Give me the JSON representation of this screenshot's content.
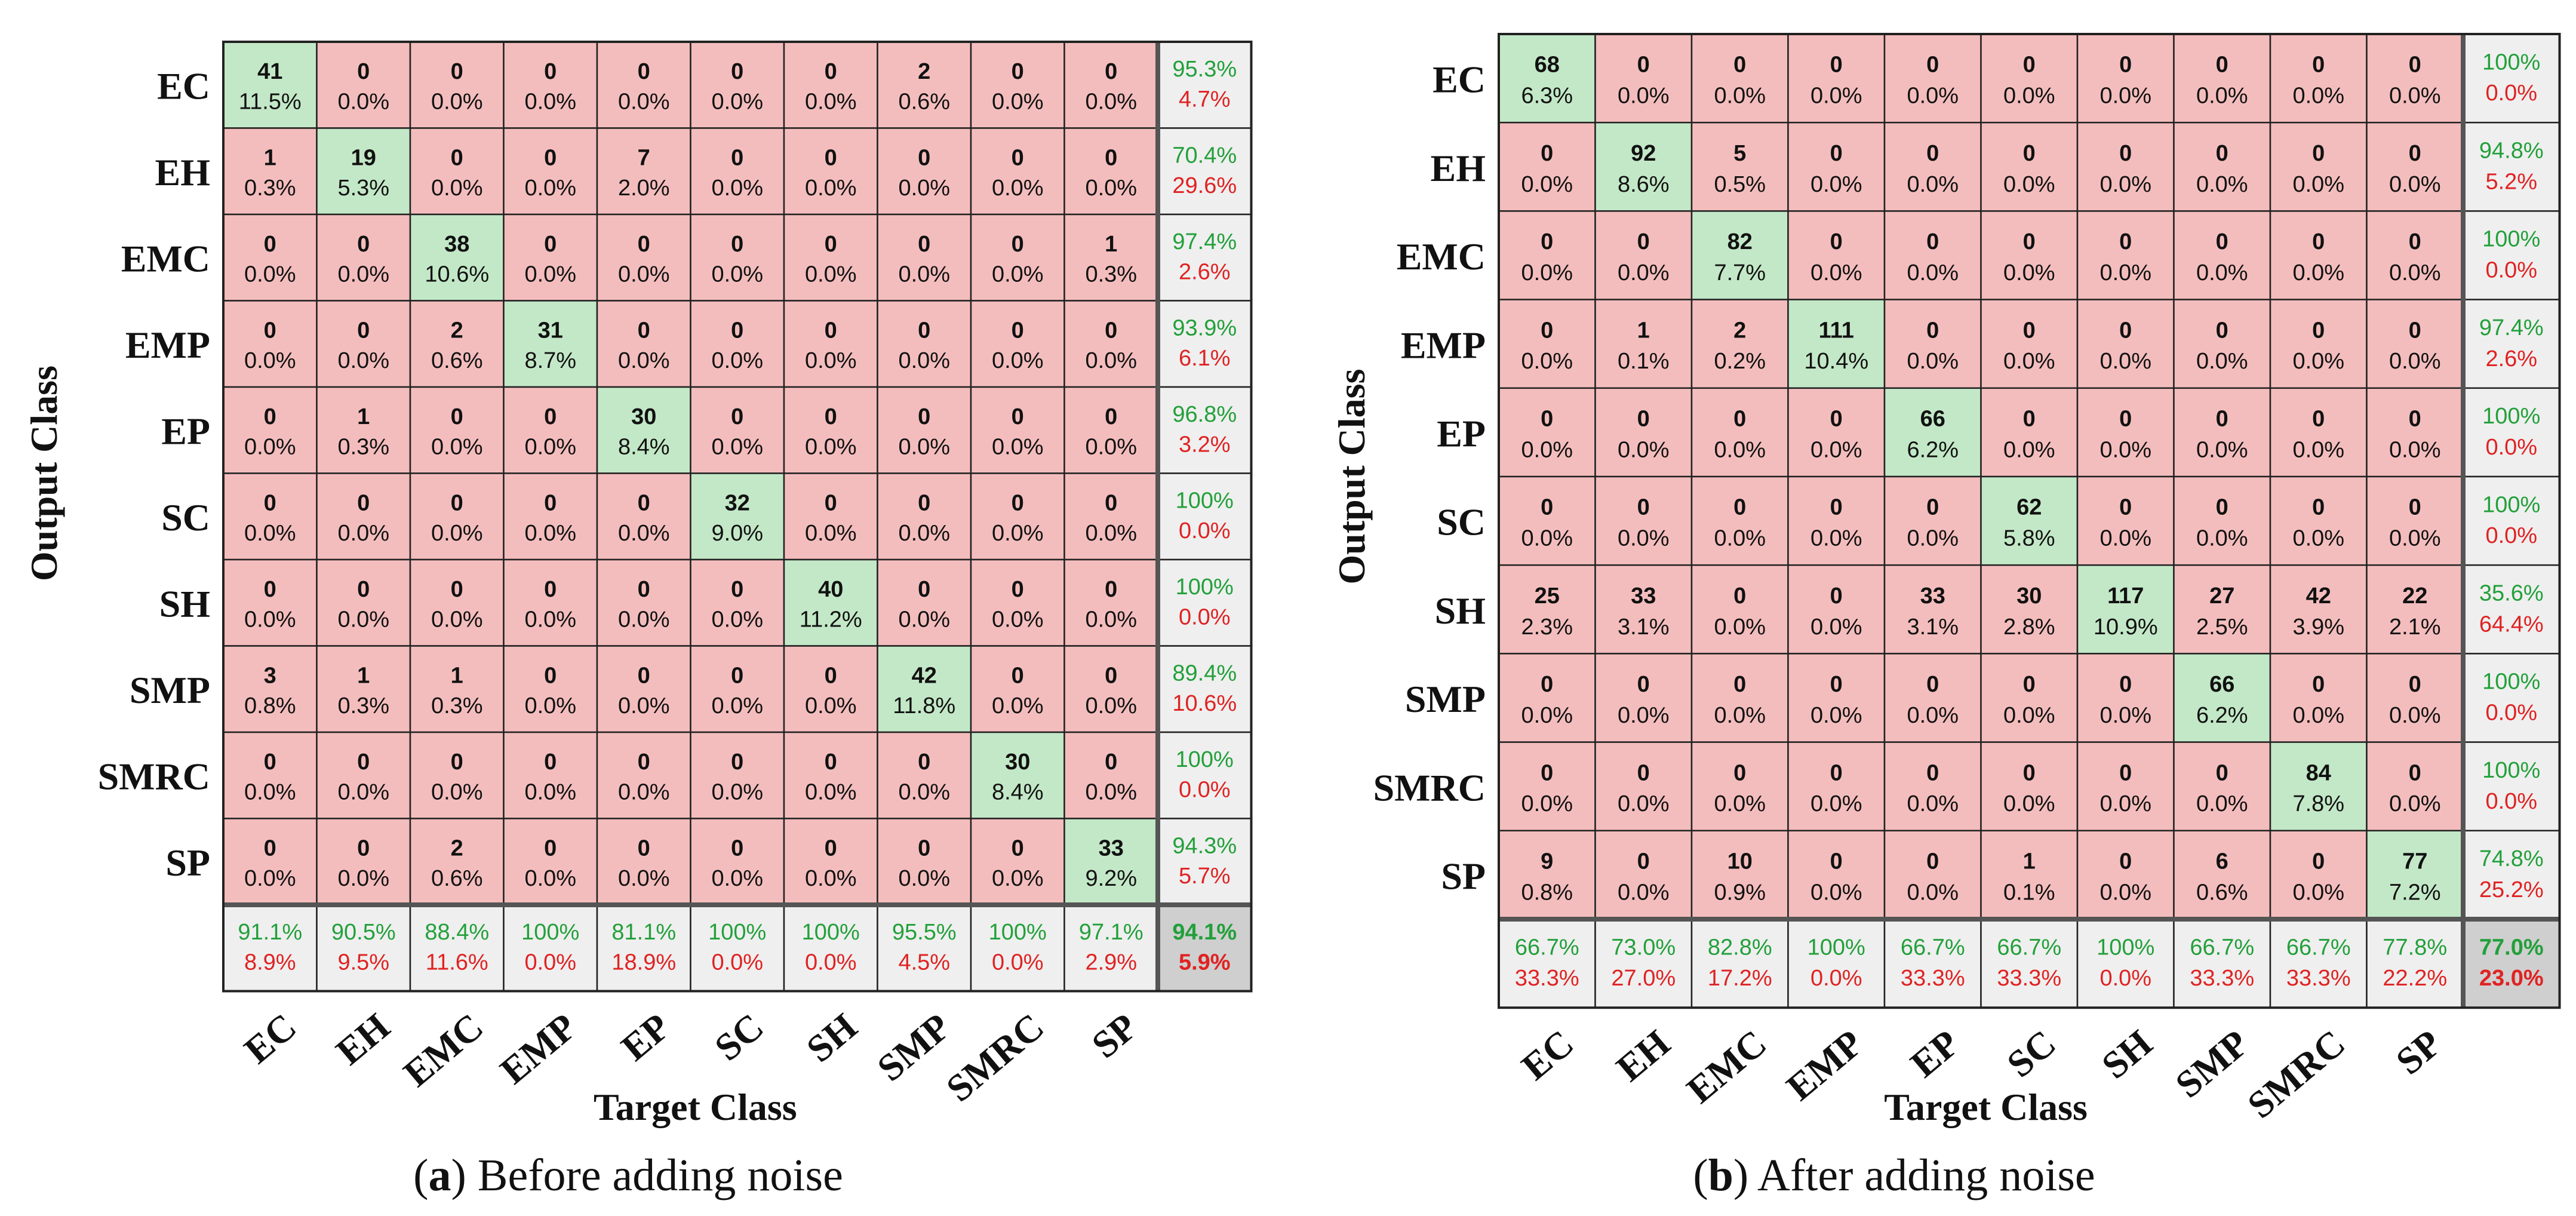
{
  "chart_data": [
    {
      "type": "heatmap",
      "subtype": "confusion-matrix",
      "caption_letter": "a",
      "caption_text": "Before adding noise",
      "xlabel": "Target Class",
      "ylabel": "Output Class",
      "classes": [
        "EC",
        "EH",
        "EMC",
        "EMP",
        "EP",
        "SC",
        "SH",
        "SMP",
        "SMRC",
        "SP"
      ],
      "rows": [
        {
          "counts": [
            41,
            0,
            0,
            0,
            0,
            0,
            0,
            2,
            0,
            0
          ],
          "percents": [
            "11.5%",
            "0.0%",
            "0.0%",
            "0.0%",
            "0.0%",
            "0.0%",
            "0.0%",
            "0.6%",
            "0.0%",
            "0.0%"
          ],
          "precision": "95.3%",
          "error": "4.7%"
        },
        {
          "counts": [
            1,
            19,
            0,
            0,
            7,
            0,
            0,
            0,
            0,
            0
          ],
          "percents": [
            "0.3%",
            "5.3%",
            "0.0%",
            "0.0%",
            "2.0%",
            "0.0%",
            "0.0%",
            "0.0%",
            "0.0%",
            "0.0%"
          ],
          "precision": "70.4%",
          "error": "29.6%"
        },
        {
          "counts": [
            0,
            0,
            38,
            0,
            0,
            0,
            0,
            0,
            0,
            1
          ],
          "percents": [
            "0.0%",
            "0.0%",
            "10.6%",
            "0.0%",
            "0.0%",
            "0.0%",
            "0.0%",
            "0.0%",
            "0.0%",
            "0.3%"
          ],
          "precision": "97.4%",
          "error": "2.6%"
        },
        {
          "counts": [
            0,
            0,
            2,
            31,
            0,
            0,
            0,
            0,
            0,
            0
          ],
          "percents": [
            "0.0%",
            "0.0%",
            "0.6%",
            "8.7%",
            "0.0%",
            "0.0%",
            "0.0%",
            "0.0%",
            "0.0%",
            "0.0%"
          ],
          "precision": "93.9%",
          "error": "6.1%"
        },
        {
          "counts": [
            0,
            1,
            0,
            0,
            30,
            0,
            0,
            0,
            0,
            0
          ],
          "percents": [
            "0.0%",
            "0.3%",
            "0.0%",
            "0.0%",
            "8.4%",
            "0.0%",
            "0.0%",
            "0.0%",
            "0.0%",
            "0.0%"
          ],
          "precision": "96.8%",
          "error": "3.2%"
        },
        {
          "counts": [
            0,
            0,
            0,
            0,
            0,
            32,
            0,
            0,
            0,
            0
          ],
          "percents": [
            "0.0%",
            "0.0%",
            "0.0%",
            "0.0%",
            "0.0%",
            "9.0%",
            "0.0%",
            "0.0%",
            "0.0%",
            "0.0%"
          ],
          "precision": "100%",
          "error": "0.0%"
        },
        {
          "counts": [
            0,
            0,
            0,
            0,
            0,
            0,
            40,
            0,
            0,
            0
          ],
          "percents": [
            "0.0%",
            "0.0%",
            "0.0%",
            "0.0%",
            "0.0%",
            "0.0%",
            "11.2%",
            "0.0%",
            "0.0%",
            "0.0%"
          ],
          "precision": "100%",
          "error": "0.0%"
        },
        {
          "counts": [
            3,
            1,
            1,
            0,
            0,
            0,
            0,
            42,
            0,
            0
          ],
          "percents": [
            "0.8%",
            "0.3%",
            "0.3%",
            "0.0%",
            "0.0%",
            "0.0%",
            "0.0%",
            "11.8%",
            "0.0%",
            "0.0%"
          ],
          "precision": "89.4%",
          "error": "10.6%"
        },
        {
          "counts": [
            0,
            0,
            0,
            0,
            0,
            0,
            0,
            0,
            30,
            0
          ],
          "percents": [
            "0.0%",
            "0.0%",
            "0.0%",
            "0.0%",
            "0.0%",
            "0.0%",
            "0.0%",
            "0.0%",
            "8.4%",
            "0.0%"
          ],
          "precision": "100%",
          "error": "0.0%"
        },
        {
          "counts": [
            0,
            0,
            2,
            0,
            0,
            0,
            0,
            0,
            0,
            33
          ],
          "percents": [
            "0.0%",
            "0.0%",
            "0.6%",
            "0.0%",
            "0.0%",
            "0.0%",
            "0.0%",
            "0.0%",
            "0.0%",
            "9.2%"
          ],
          "precision": "94.3%",
          "error": "5.7%"
        }
      ],
      "column_recall": [
        "91.1%",
        "90.5%",
        "88.4%",
        "100%",
        "81.1%",
        "100%",
        "100%",
        "95.5%",
        "100%",
        "97.1%"
      ],
      "column_error": [
        "8.9%",
        "9.5%",
        "11.6%",
        "0.0%",
        "18.9%",
        "0.0%",
        "0.0%",
        "4.5%",
        "0.0%",
        "2.9%"
      ],
      "overall_accuracy": "94.1%",
      "overall_error": "5.9%"
    },
    {
      "type": "heatmap",
      "subtype": "confusion-matrix",
      "caption_letter": "b",
      "caption_text": "After adding noise",
      "xlabel": "Target Class",
      "ylabel": "Output Class",
      "classes": [
        "EC",
        "EH",
        "EMC",
        "EMP",
        "EP",
        "SC",
        "SH",
        "SMP",
        "SMRC",
        "SP"
      ],
      "rows": [
        {
          "counts": [
            68,
            0,
            0,
            0,
            0,
            0,
            0,
            0,
            0,
            0
          ],
          "percents": [
            "6.3%",
            "0.0%",
            "0.0%",
            "0.0%",
            "0.0%",
            "0.0%",
            "0.0%",
            "0.0%",
            "0.0%",
            "0.0%"
          ],
          "precision": "100%",
          "error": "0.0%"
        },
        {
          "counts": [
            0,
            92,
            5,
            0,
            0,
            0,
            0,
            0,
            0,
            0
          ],
          "percents": [
            "0.0%",
            "8.6%",
            "0.5%",
            "0.0%",
            "0.0%",
            "0.0%",
            "0.0%",
            "0.0%",
            "0.0%",
            "0.0%"
          ],
          "precision": "94.8%",
          "error": "5.2%"
        },
        {
          "counts": [
            0,
            0,
            82,
            0,
            0,
            0,
            0,
            0,
            0,
            0
          ],
          "percents": [
            "0.0%",
            "0.0%",
            "7.7%",
            "0.0%",
            "0.0%",
            "0.0%",
            "0.0%",
            "0.0%",
            "0.0%",
            "0.0%"
          ],
          "precision": "100%",
          "error": "0.0%"
        },
        {
          "counts": [
            0,
            1,
            2,
            111,
            0,
            0,
            0,
            0,
            0,
            0
          ],
          "percents": [
            "0.0%",
            "0.1%",
            "0.2%",
            "10.4%",
            "0.0%",
            "0.0%",
            "0.0%",
            "0.0%",
            "0.0%",
            "0.0%"
          ],
          "precision": "97.4%",
          "error": "2.6%"
        },
        {
          "counts": [
            0,
            0,
            0,
            0,
            66,
            0,
            0,
            0,
            0,
            0
          ],
          "percents": [
            "0.0%",
            "0.0%",
            "0.0%",
            "0.0%",
            "6.2%",
            "0.0%",
            "0.0%",
            "0.0%",
            "0.0%",
            "0.0%"
          ],
          "precision": "100%",
          "error": "0.0%"
        },
        {
          "counts": [
            0,
            0,
            0,
            0,
            0,
            62,
            0,
            0,
            0,
            0
          ],
          "percents": [
            "0.0%",
            "0.0%",
            "0.0%",
            "0.0%",
            "0.0%",
            "5.8%",
            "0.0%",
            "0.0%",
            "0.0%",
            "0.0%"
          ],
          "precision": "100%",
          "error": "0.0%"
        },
        {
          "counts": [
            25,
            33,
            0,
            0,
            33,
            30,
            117,
            27,
            42,
            22
          ],
          "percents": [
            "2.3%",
            "3.1%",
            "0.0%",
            "0.0%",
            "3.1%",
            "2.8%",
            "10.9%",
            "2.5%",
            "3.9%",
            "2.1%"
          ],
          "precision": "35.6%",
          "error": "64.4%"
        },
        {
          "counts": [
            0,
            0,
            0,
            0,
            0,
            0,
            0,
            66,
            0,
            0
          ],
          "percents": [
            "0.0%",
            "0.0%",
            "0.0%",
            "0.0%",
            "0.0%",
            "0.0%",
            "0.0%",
            "6.2%",
            "0.0%",
            "0.0%"
          ],
          "precision": "100%",
          "error": "0.0%"
        },
        {
          "counts": [
            0,
            0,
            0,
            0,
            0,
            0,
            0,
            0,
            84,
            0
          ],
          "percents": [
            "0.0%",
            "0.0%",
            "0.0%",
            "0.0%",
            "0.0%",
            "0.0%",
            "0.0%",
            "0.0%",
            "7.8%",
            "0.0%"
          ],
          "precision": "100%",
          "error": "0.0%"
        },
        {
          "counts": [
            9,
            0,
            10,
            0,
            0,
            1,
            0,
            6,
            0,
            77
          ],
          "percents": [
            "0.8%",
            "0.0%",
            "0.9%",
            "0.0%",
            "0.0%",
            "0.1%",
            "0.0%",
            "0.6%",
            "0.0%",
            "7.2%"
          ],
          "precision": "74.8%",
          "error": "25.2%"
        }
      ],
      "column_recall": [
        "66.7%",
        "73.0%",
        "82.8%",
        "100%",
        "66.7%",
        "66.7%",
        "100%",
        "66.7%",
        "66.7%",
        "77.8%"
      ],
      "column_error": [
        "33.3%",
        "27.0%",
        "17.2%",
        "0.0%",
        "33.3%",
        "33.3%",
        "0.0%",
        "33.3%",
        "33.3%",
        "22.2%"
      ],
      "overall_accuracy": "77.0%",
      "overall_error": "23.0%"
    }
  ],
  "colors": {
    "diagonal": "#c3e8c7",
    "offdiagonal": "#f4bdbd",
    "summary": "#efefef",
    "total": "#cfcfcf",
    "good_text": "#22a03a",
    "bad_text": "#e02222",
    "grid": "#222222",
    "outer": "#555555"
  }
}
